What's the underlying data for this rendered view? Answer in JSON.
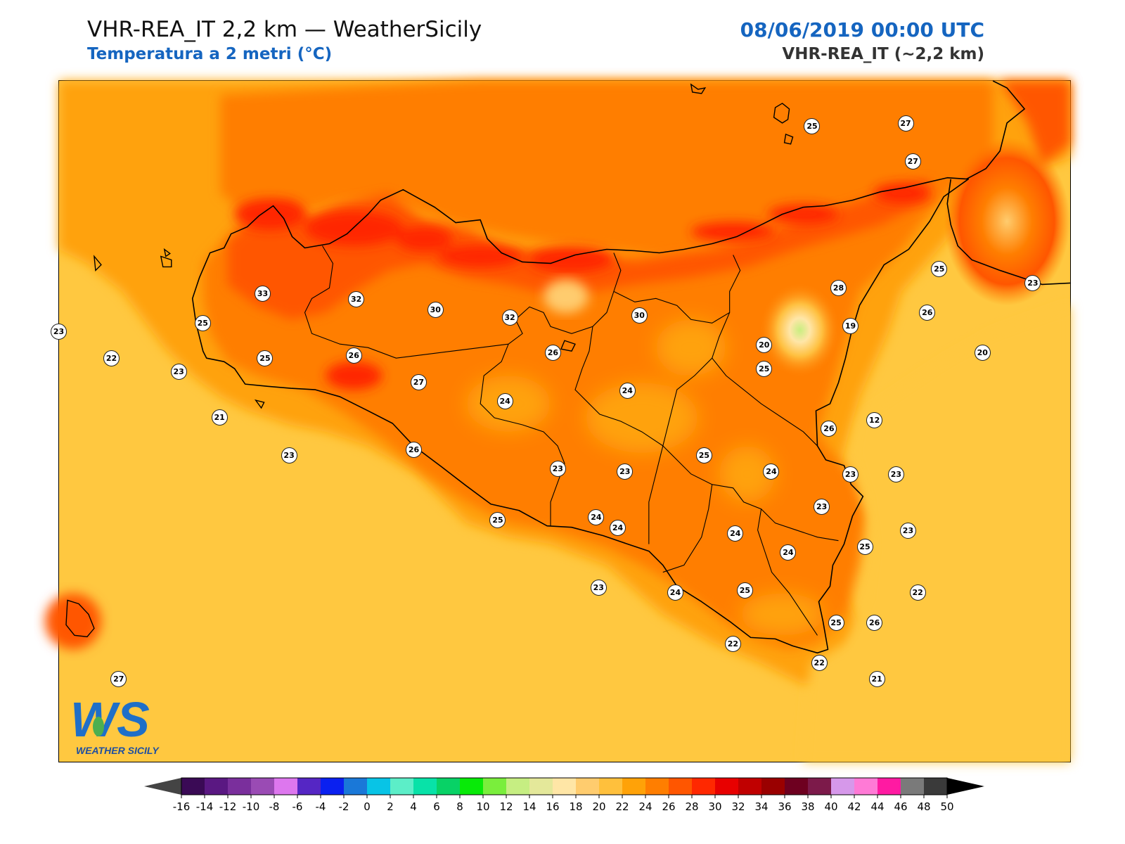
{
  "header": {
    "title": "VHR-REA_IT 2,2 km — WeatherSicily",
    "subtitle": "Temperatura a 2 metri (°C)",
    "datetime": "08/06/2019 00:00 UTC",
    "model": "VHR-REA_IT (~2,2 km)"
  },
  "colors": {
    "accent_blue": "#1565c0",
    "title_dark": "#111111",
    "background_sea": "#ffc840"
  },
  "logo": {
    "letters": "WS",
    "text": "WEATHER SICILY"
  },
  "map": {
    "region": "Sicily",
    "points": [
      {
        "label": "25",
        "lon": 14.84,
        "lat": 38.89
      },
      {
        "label": "27",
        "lon": 15.23,
        "lat": 38.9
      },
      {
        "label": "27",
        "lon": 15.26,
        "lat": 38.76
      },
      {
        "label": "33",
        "lon": 12.55,
        "lat": 38.27
      },
      {
        "label": "32",
        "lon": 12.94,
        "lat": 38.25
      },
      {
        "label": "30",
        "lon": 13.27,
        "lat": 38.21
      },
      {
        "label": "32",
        "lon": 13.58,
        "lat": 38.18
      },
      {
        "label": "30",
        "lon": 14.12,
        "lat": 38.19
      },
      {
        "label": "28",
        "lon": 14.95,
        "lat": 38.29
      },
      {
        "label": "25",
        "lon": 15.37,
        "lat": 38.36
      },
      {
        "label": "23",
        "lon": 15.76,
        "lat": 38.31
      },
      {
        "label": "23",
        "lon": 11.7,
        "lat": 38.13
      },
      {
        "label": "25",
        "lon": 12.3,
        "lat": 38.16
      },
      {
        "label": "22",
        "lon": 11.92,
        "lat": 38.03
      },
      {
        "label": "26",
        "lon": 12.93,
        "lat": 38.04
      },
      {
        "label": "25",
        "lon": 12.56,
        "lat": 38.03
      },
      {
        "label": "23",
        "lon": 12.2,
        "lat": 37.98
      },
      {
        "label": "27",
        "lon": 13.2,
        "lat": 37.94
      },
      {
        "label": "26",
        "lon": 13.76,
        "lat": 38.05
      },
      {
        "label": "24",
        "lon": 13.56,
        "lat": 37.87
      },
      {
        "label": "24",
        "lon": 14.07,
        "lat": 37.91
      },
      {
        "label": "25",
        "lon": 14.64,
        "lat": 37.99
      },
      {
        "label": "20",
        "lon": 14.64,
        "lat": 38.08
      },
      {
        "label": "19",
        "lon": 15.0,
        "lat": 38.15
      },
      {
        "label": "26",
        "lon": 15.32,
        "lat": 38.2
      },
      {
        "label": "20",
        "lon": 15.55,
        "lat": 38.05
      },
      {
        "label": "12",
        "lon": 15.1,
        "lat": 37.8
      },
      {
        "label": "21",
        "lon": 12.37,
        "lat": 37.81
      },
      {
        "label": "23",
        "lon": 12.66,
        "lat": 37.67
      },
      {
        "label": "26",
        "lon": 13.18,
        "lat": 37.69
      },
      {
        "label": "23",
        "lon": 13.78,
        "lat": 37.62
      },
      {
        "label": "23",
        "lon": 14.06,
        "lat": 37.61
      },
      {
        "label": "25",
        "lon": 14.39,
        "lat": 37.67
      },
      {
        "label": "24",
        "lon": 14.67,
        "lat": 37.61
      },
      {
        "label": "26",
        "lon": 14.91,
        "lat": 37.77
      },
      {
        "label": "23",
        "lon": 15.0,
        "lat": 37.6
      },
      {
        "label": "23",
        "lon": 15.19,
        "lat": 37.6
      },
      {
        "label": "23",
        "lon": 14.88,
        "lat": 37.48
      },
      {
        "label": "25",
        "lon": 13.53,
        "lat": 37.43
      },
      {
        "label": "24",
        "lon": 13.94,
        "lat": 37.44
      },
      {
        "label": "24",
        "lon": 14.03,
        "lat": 37.4
      },
      {
        "label": "24",
        "lon": 14.52,
        "lat": 37.38
      },
      {
        "label": "23",
        "lon": 15.24,
        "lat": 37.39
      },
      {
        "label": "24",
        "lon": 14.74,
        "lat": 37.31
      },
      {
        "label": "25",
        "lon": 15.06,
        "lat": 37.33
      },
      {
        "label": "23",
        "lon": 13.95,
        "lat": 37.18
      },
      {
        "label": "24",
        "lon": 14.27,
        "lat": 37.16
      },
      {
        "label": "25",
        "lon": 14.56,
        "lat": 37.17
      },
      {
        "label": "22",
        "lon": 15.28,
        "lat": 37.16
      },
      {
        "label": "25",
        "lon": 14.94,
        "lat": 37.05
      },
      {
        "label": "26",
        "lon": 15.1,
        "lat": 37.05
      },
      {
        "label": "22",
        "lon": 14.51,
        "lat": 36.97
      },
      {
        "label": "22",
        "lon": 14.87,
        "lat": 36.9
      },
      {
        "label": "21",
        "lon": 15.11,
        "lat": 36.84
      },
      {
        "label": "27",
        "lon": 11.95,
        "lat": 36.84
      }
    ],
    "extent": {
      "lon": [
        11.7,
        15.92
      ],
      "lat": [
        36.53,
        39.06
      ]
    }
  },
  "colorbar": {
    "ticks": [
      "-16",
      "-14",
      "-12",
      "-10",
      "-8",
      "-6",
      "-4",
      "-2",
      "0",
      "2",
      "4",
      "6",
      "8",
      "10",
      "12",
      "14",
      "16",
      "18",
      "20",
      "22",
      "24",
      "26",
      "28",
      "30",
      "32",
      "34",
      "36",
      "38",
      "40",
      "42",
      "44",
      "46",
      "48",
      "50"
    ],
    "colors": [
      "#3a0a55",
      "#5a1882",
      "#7a2f9c",
      "#9a4bb4",
      "#dd77ee",
      "#5526c4",
      "#0a20f0",
      "#1a78d8",
      "#08c4e6",
      "#5ceec8",
      "#08e2a8",
      "#08d266",
      "#08ea08",
      "#7aee3c",
      "#c6ee82",
      "#e4e89a",
      "#ffe6a6",
      "#ffcc6e",
      "#ffc03c",
      "#ffa208",
      "#ff7e00",
      "#ff5600",
      "#ff2800",
      "#e80000",
      "#c00000",
      "#9a0000",
      "#6e0020",
      "#7c1a4a",
      "#d698ea",
      "#ff7ad6",
      "#ff1aa2",
      "#7a7a7a",
      "#3a3a3a"
    ]
  }
}
